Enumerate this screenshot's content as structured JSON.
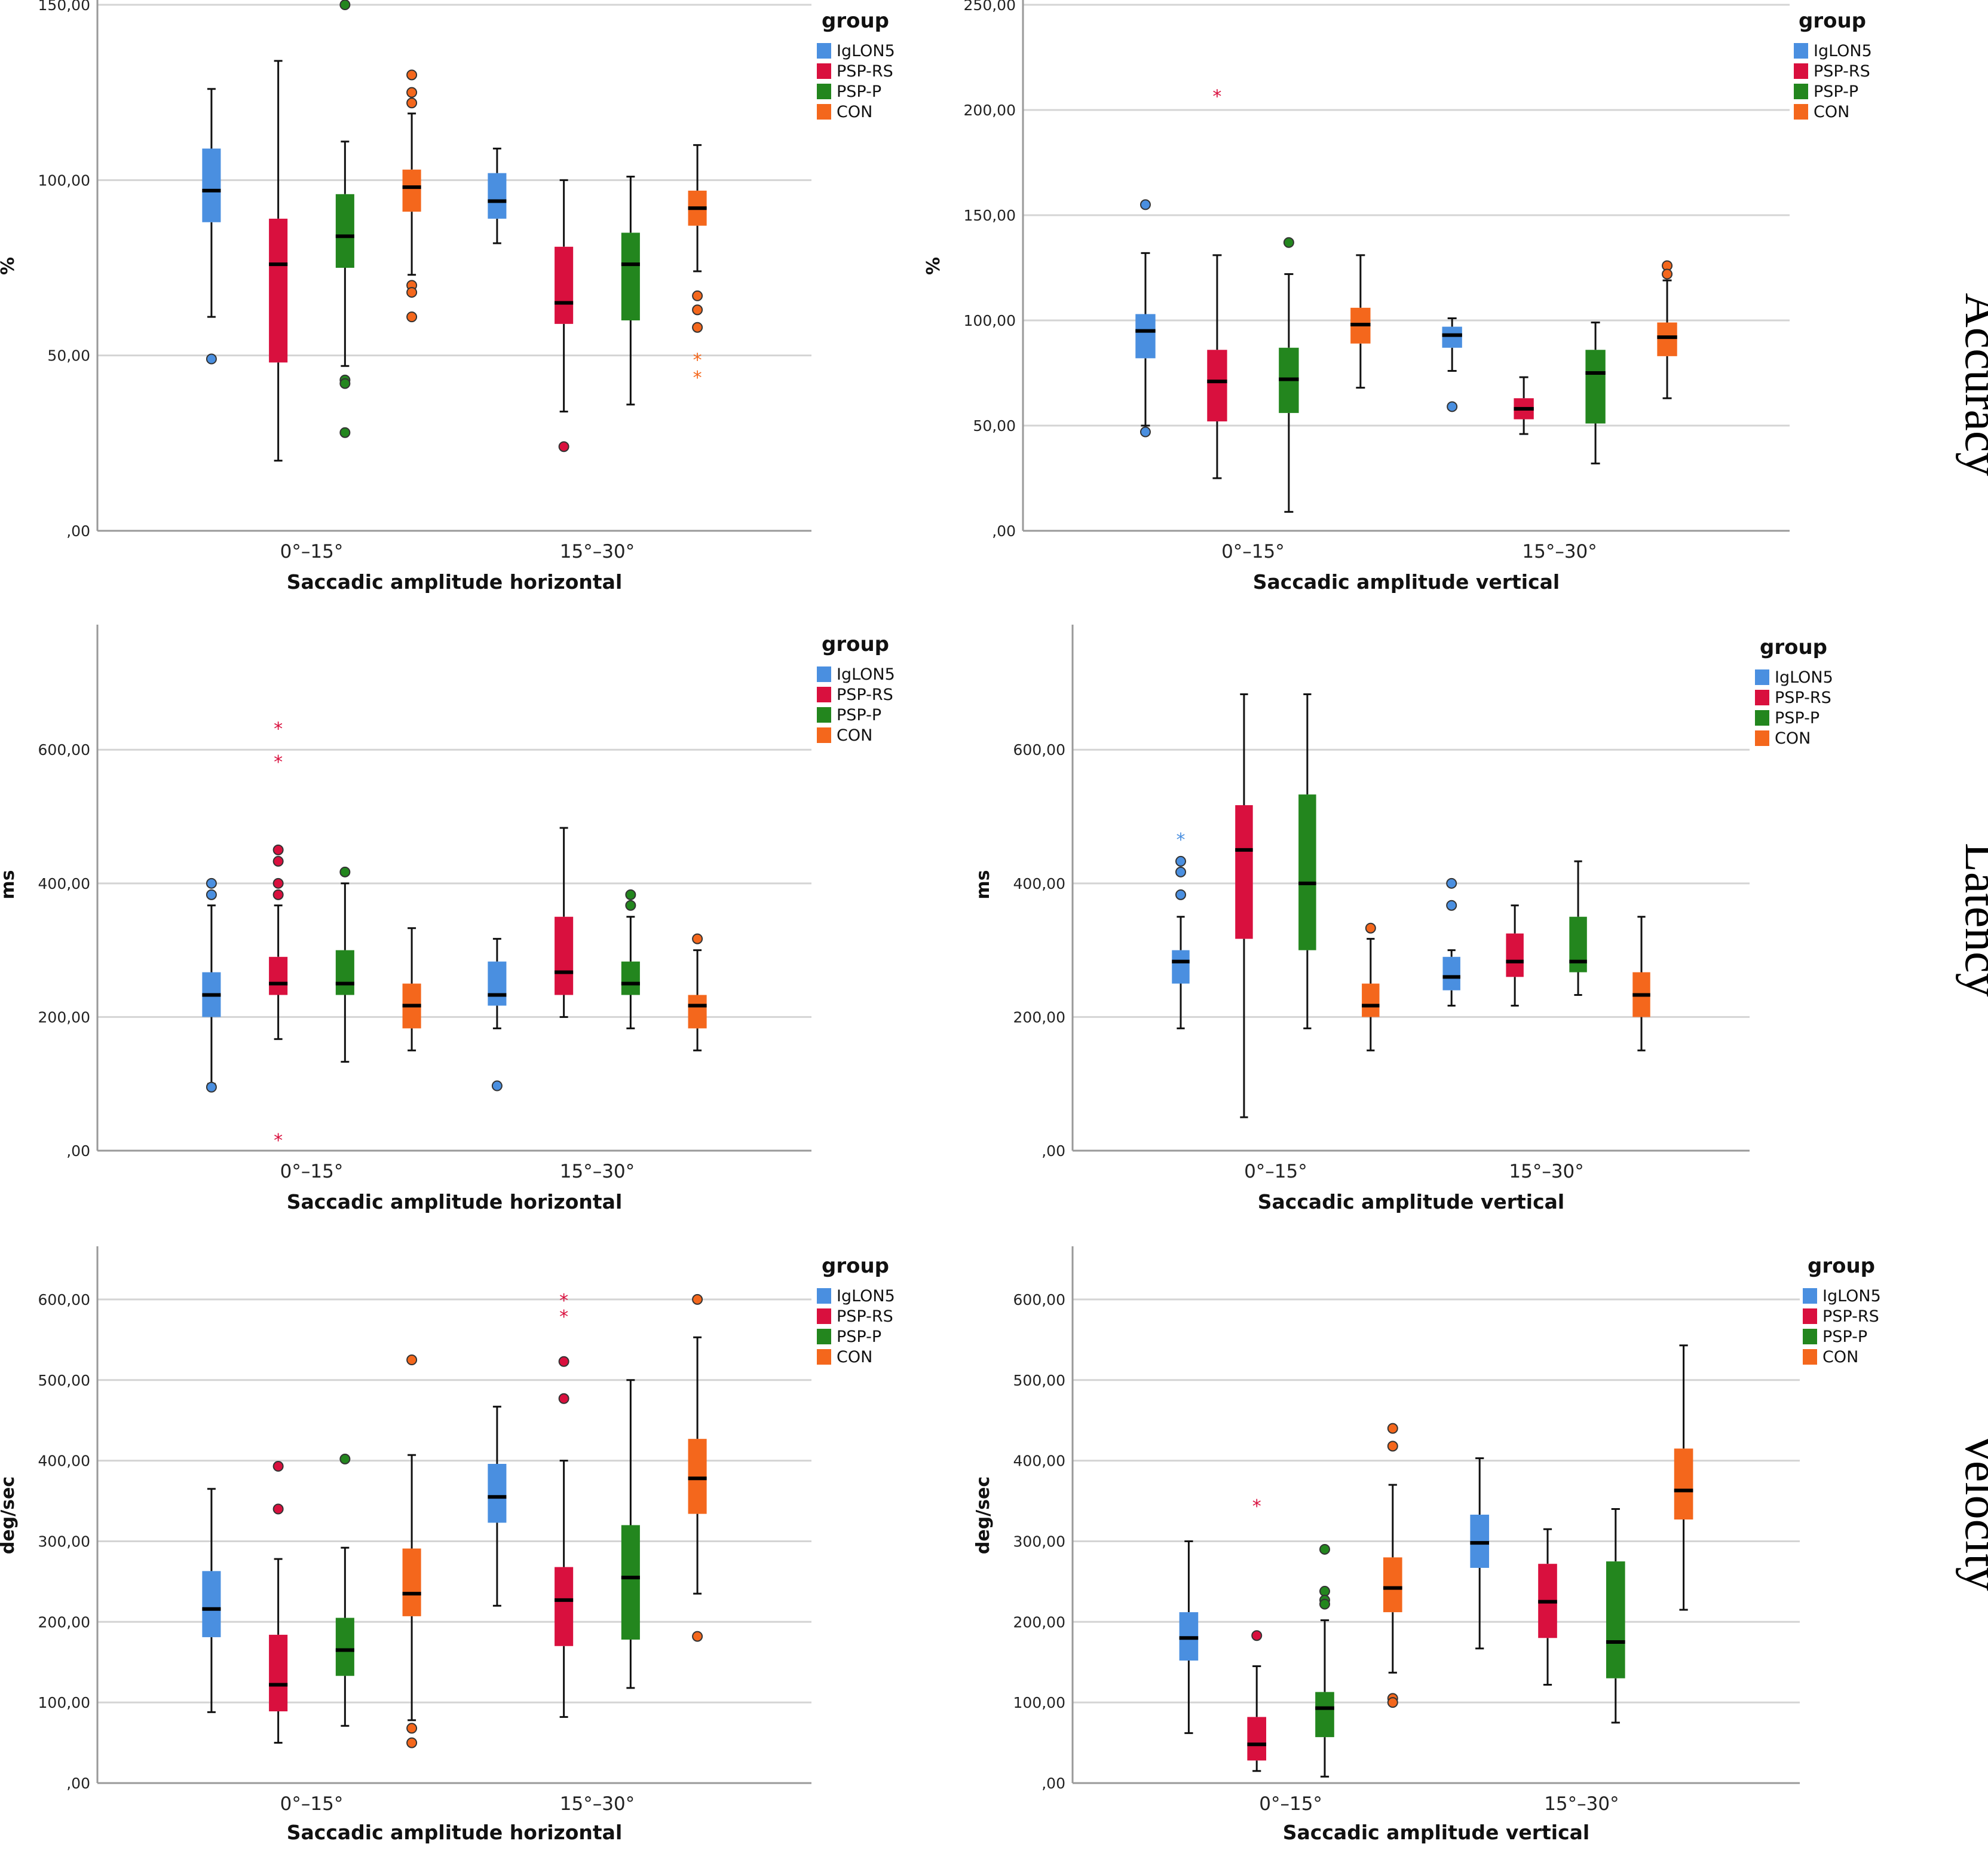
{
  "colors": {
    "IgLON5": "#4a8fe0",
    "PSP-RS": "#d9103e",
    "PSP-P": "#23861e",
    "CON": "#f4671c",
    "grid": "#d4d4d4",
    "axis": "#999999"
  },
  "row_labels": [
    "Accuracy",
    "Latency",
    "Velocity"
  ],
  "chart_data": [
    {
      "type": "box",
      "id": "acc-h",
      "row": 0,
      "col": 0,
      "xlabel": "Saccadic amplitude horizontal",
      "ylabel": "%",
      "ylim": [
        0,
        150
      ],
      "yticks": [
        0,
        50,
        100,
        150
      ],
      "yticklabels": [
        ",00",
        "50,00",
        "100,00",
        "150,00"
      ],
      "legend_title": "group",
      "legend_entries": [
        "IgLON5",
        "PSP-RS",
        "PSP-P",
        "CON"
      ],
      "categories": [
        "0°–15°",
        "15°–30°"
      ],
      "groups": [
        {
          "cat": 0,
          "group": "IgLON5",
          "min": 61,
          "q1": 88,
          "med": 97,
          "q3": 109,
          "max": 126,
          "outliers": [
            49
          ],
          "extremes": []
        },
        {
          "cat": 0,
          "group": "PSP-RS",
          "min": 20,
          "q1": 48,
          "med": 76,
          "q3": 89,
          "max": 134,
          "outliers": [],
          "extremes": []
        },
        {
          "cat": 0,
          "group": "PSP-P",
          "min": 47,
          "q1": 75,
          "med": 84,
          "q3": 96,
          "max": 111,
          "outliers": [
            150,
            43,
            42,
            28
          ],
          "extremes": []
        },
        {
          "cat": 0,
          "group": "CON",
          "min": 73,
          "q1": 91,
          "med": 98,
          "q3": 103,
          "max": 119,
          "outliers": [
            130,
            125,
            122,
            70,
            68,
            61
          ],
          "extremes": []
        },
        {
          "cat": 1,
          "group": "IgLON5",
          "min": 82,
          "q1": 89,
          "med": 94,
          "q3": 102,
          "max": 109,
          "outliers": [],
          "extremes": []
        },
        {
          "cat": 1,
          "group": "PSP-RS",
          "min": 34,
          "q1": 59,
          "med": 65,
          "q3": 81,
          "max": 100,
          "outliers": [
            24
          ],
          "extremes": []
        },
        {
          "cat": 1,
          "group": "PSP-P",
          "min": 36,
          "q1": 60,
          "med": 76,
          "q3": 85,
          "max": 101,
          "outliers": [],
          "extremes": []
        },
        {
          "cat": 1,
          "group": "CON",
          "min": 74,
          "q1": 87,
          "med": 92,
          "q3": 97,
          "max": 110,
          "outliers": [
            67,
            63,
            58
          ],
          "extremes": [
            49,
            44
          ]
        }
      ]
    },
    {
      "type": "box",
      "id": "acc-v",
      "row": 0,
      "col": 1,
      "xlabel": "Saccadic amplitude vertical",
      "ylabel": "%",
      "ylim": [
        0,
        250
      ],
      "yticks": [
        0,
        50,
        100,
        150,
        200,
        250
      ],
      "yticklabels": [
        ",00",
        "50,00",
        "100,00",
        "150,00",
        "200,00",
        "250,00"
      ],
      "legend_title": "group",
      "legend_entries": [
        "IgLON5",
        "PSP-RS",
        "PSP-P",
        "CON"
      ],
      "categories": [
        "0°–15°",
        "15°–30°"
      ],
      "groups": [
        {
          "cat": 0,
          "group": "IgLON5",
          "min": 50,
          "q1": 82,
          "med": 95,
          "q3": 103,
          "max": 132,
          "outliers": [
            155,
            47
          ],
          "extremes": []
        },
        {
          "cat": 0,
          "group": "PSP-RS",
          "min": 25,
          "q1": 52,
          "med": 71,
          "q3": 86,
          "max": 131,
          "outliers": [],
          "extremes": [
            207
          ]
        },
        {
          "cat": 0,
          "group": "PSP-P",
          "min": 9,
          "q1": 56,
          "med": 72,
          "q3": 87,
          "max": 122,
          "outliers": [
            137
          ],
          "extremes": []
        },
        {
          "cat": 0,
          "group": "CON",
          "min": 68,
          "q1": 89,
          "med": 98,
          "q3": 106,
          "max": 131,
          "outliers": [],
          "extremes": []
        },
        {
          "cat": 1,
          "group": "IgLON5",
          "min": 76,
          "q1": 87,
          "med": 93,
          "q3": 97,
          "max": 101,
          "outliers": [
            59
          ],
          "extremes": []
        },
        {
          "cat": 1,
          "group": "PSP-RS",
          "min": 46,
          "q1": 53,
          "med": 58,
          "q3": 63,
          "max": 73,
          "outliers": [],
          "extremes": []
        },
        {
          "cat": 1,
          "group": "PSP-P",
          "min": 32,
          "q1": 51,
          "med": 75,
          "q3": 86,
          "max": 99,
          "outliers": [],
          "extremes": []
        },
        {
          "cat": 1,
          "group": "CON",
          "min": 63,
          "q1": 83,
          "med": 92,
          "q3": 99,
          "max": 119,
          "outliers": [
            126,
            122
          ],
          "extremes": []
        }
      ]
    },
    {
      "type": "box",
      "id": "lat-h",
      "row": 1,
      "col": 0,
      "xlabel": "Saccadic amplitude horizontal",
      "ylabel": "ms",
      "ylim": [
        0,
        780
      ],
      "yticks": [
        0,
        200,
        400,
        600
      ],
      "yticklabels": [
        ",00",
        "200,00",
        "400,00",
        "600,00"
      ],
      "legend_title": "group",
      "legend_entries": [
        "IgLON5",
        "PSP-RS",
        "PSP-P",
        "CON"
      ],
      "categories": [
        "0°–15°",
        "15°–30°"
      ],
      "groups": [
        {
          "cat": 0,
          "group": "IgLON5",
          "min": 100,
          "q1": 200,
          "med": 233,
          "q3": 267,
          "max": 367,
          "outliers": [
            400,
            383,
            95
          ],
          "extremes": []
        },
        {
          "cat": 0,
          "group": "PSP-RS",
          "min": 167,
          "q1": 233,
          "med": 250,
          "q3": 290,
          "max": 367,
          "outliers": [
            450,
            433,
            400,
            383
          ],
          "extremes": [
            633,
            583,
            17
          ]
        },
        {
          "cat": 0,
          "group": "PSP-P",
          "min": 133,
          "q1": 233,
          "med": 250,
          "q3": 300,
          "max": 400,
          "outliers": [
            417
          ],
          "extremes": []
        },
        {
          "cat": 0,
          "group": "CON",
          "min": 150,
          "q1": 183,
          "med": 217,
          "q3": 250,
          "max": 333,
          "outliers": [],
          "extremes": []
        },
        {
          "cat": 1,
          "group": "IgLON5",
          "min": 183,
          "q1": 217,
          "med": 233,
          "q3": 283,
          "max": 317,
          "outliers": [
            97
          ],
          "extremes": []
        },
        {
          "cat": 1,
          "group": "PSP-RS",
          "min": 200,
          "q1": 233,
          "med": 267,
          "q3": 350,
          "max": 483,
          "outliers": [],
          "extremes": []
        },
        {
          "cat": 1,
          "group": "PSP-P",
          "min": 183,
          "q1": 233,
          "med": 250,
          "q3": 283,
          "max": 350,
          "outliers": [
            383,
            367
          ],
          "extremes": []
        },
        {
          "cat": 1,
          "group": "CON",
          "min": 150,
          "q1": 183,
          "med": 217,
          "q3": 233,
          "max": 300,
          "outliers": [
            317
          ],
          "extremes": []
        }
      ]
    },
    {
      "type": "box",
      "id": "lat-v",
      "row": 1,
      "col": 1,
      "xlabel": "Saccadic amplitude vertical",
      "ylabel": "ms",
      "ylim": [
        0,
        780
      ],
      "yticks": [
        0,
        200,
        400,
        600
      ],
      "yticklabels": [
        ",00",
        "200,00",
        "400,00",
        "600,00"
      ],
      "legend_title": "group",
      "legend_entries": [
        "IgLON5",
        "PSP-RS",
        "PSP-P",
        "CON"
      ],
      "categories": [
        "0°–15°",
        "15°–30°"
      ],
      "groups": [
        {
          "cat": 0,
          "group": "IgLON5",
          "min": 183,
          "q1": 250,
          "med": 283,
          "q3": 300,
          "max": 350,
          "outliers": [
            433,
            417,
            383
          ],
          "extremes": [
            467
          ]
        },
        {
          "cat": 0,
          "group": "PSP-RS",
          "min": 50,
          "q1": 317,
          "med": 450,
          "q3": 517,
          "max": 683,
          "outliers": [],
          "extremes": []
        },
        {
          "cat": 0,
          "group": "PSP-P",
          "min": 183,
          "q1": 300,
          "med": 400,
          "q3": 533,
          "max": 683,
          "outliers": [],
          "extremes": []
        },
        {
          "cat": 0,
          "group": "CON",
          "min": 150,
          "q1": 200,
          "med": 217,
          "q3": 250,
          "max": 317,
          "outliers": [
            333
          ],
          "extremes": []
        },
        {
          "cat": 1,
          "group": "IgLON5",
          "min": 217,
          "q1": 240,
          "med": 260,
          "q3": 290,
          "max": 300,
          "outliers": [
            400,
            367
          ],
          "extremes": []
        },
        {
          "cat": 1,
          "group": "PSP-RS",
          "min": 217,
          "q1": 260,
          "med": 283,
          "q3": 325,
          "max": 367,
          "outliers": [],
          "extremes": []
        },
        {
          "cat": 1,
          "group": "PSP-P",
          "min": 233,
          "q1": 267,
          "med": 283,
          "q3": 350,
          "max": 433,
          "outliers": [],
          "extremes": []
        },
        {
          "cat": 1,
          "group": "CON",
          "min": 150,
          "q1": 200,
          "med": 233,
          "q3": 267,
          "max": 350,
          "outliers": [],
          "extremes": []
        }
      ]
    },
    {
      "type": "box",
      "id": "vel-h",
      "row": 2,
      "col": 0,
      "xlabel": "Saccadic amplitude horizontal",
      "ylabel": "deg/sec",
      "ylim": [
        0,
        660
      ],
      "yticks": [
        0,
        100,
        200,
        300,
        400,
        500,
        600
      ],
      "yticklabels": [
        ",00",
        "100,00",
        "200,00",
        "300,00",
        "400,00",
        "500,00",
        "600,00"
      ],
      "legend_title": "group",
      "legend_entries": [
        "IgLON5",
        "PSP-RS",
        "PSP-P",
        "CON"
      ],
      "categories": [
        "0°–15°",
        "15°–30°"
      ],
      "groups": [
        {
          "cat": 0,
          "group": "IgLON5",
          "min": 88,
          "q1": 181,
          "med": 216,
          "q3": 263,
          "max": 365,
          "outliers": [],
          "extremes": []
        },
        {
          "cat": 0,
          "group": "PSP-RS",
          "min": 50,
          "q1": 89,
          "med": 122,
          "q3": 184,
          "max": 278,
          "outliers": [
            393,
            340
          ],
          "extremes": []
        },
        {
          "cat": 0,
          "group": "PSP-P",
          "min": 71,
          "q1": 133,
          "med": 165,
          "q3": 205,
          "max": 292,
          "outliers": [
            402
          ],
          "extremes": []
        },
        {
          "cat": 0,
          "group": "CON",
          "min": 78,
          "q1": 207,
          "med": 235,
          "q3": 291,
          "max": 407,
          "outliers": [
            525,
            68,
            50
          ],
          "extremes": []
        },
        {
          "cat": 1,
          "group": "IgLON5",
          "min": 220,
          "q1": 323,
          "med": 355,
          "q3": 396,
          "max": 467,
          "outliers": [],
          "extremes": []
        },
        {
          "cat": 1,
          "group": "PSP-RS",
          "min": 82,
          "q1": 170,
          "med": 227,
          "q3": 268,
          "max": 400,
          "outliers": [
            523,
            477
          ],
          "extremes": [
            600,
            580
          ]
        },
        {
          "cat": 1,
          "group": "PSP-P",
          "min": 118,
          "q1": 178,
          "med": 255,
          "q3": 320,
          "max": 500,
          "outliers": [],
          "extremes": []
        },
        {
          "cat": 1,
          "group": "CON",
          "min": 235,
          "q1": 334,
          "med": 378,
          "q3": 427,
          "max": 553,
          "outliers": [
            600,
            182
          ],
          "extremes": []
        }
      ]
    },
    {
      "type": "box",
      "id": "vel-v",
      "row": 2,
      "col": 1,
      "xlabel": "Saccadic amplitude vertical",
      "ylabel": "deg/sec",
      "ylim": [
        0,
        660
      ],
      "yticks": [
        0,
        100,
        200,
        300,
        400,
        500,
        600
      ],
      "yticklabels": [
        ",00",
        "100,00",
        "200,00",
        "300,00",
        "400,00",
        "500,00",
        "600,00"
      ],
      "legend_title": "group",
      "legend_entries": [
        "IgLON5",
        "PSP-RS",
        "PSP-P",
        "CON"
      ],
      "categories": [
        "0°–15°",
        "15°–30°"
      ],
      "groups": [
        {
          "cat": 0,
          "group": "IgLON5",
          "min": 62,
          "q1": 152,
          "med": 180,
          "q3": 212,
          "max": 300,
          "outliers": [],
          "extremes": []
        },
        {
          "cat": 0,
          "group": "PSP-RS",
          "min": 15,
          "q1": 28,
          "med": 48,
          "q3": 82,
          "max": 145,
          "outliers": [
            183
          ],
          "extremes": [
            345
          ]
        },
        {
          "cat": 0,
          "group": "PSP-P",
          "min": 8,
          "q1": 57,
          "med": 93,
          "q3": 113,
          "max": 202,
          "outliers": [
            290,
            238,
            227,
            222
          ],
          "extremes": []
        },
        {
          "cat": 0,
          "group": "CON",
          "min": 137,
          "q1": 212,
          "med": 242,
          "q3": 280,
          "max": 370,
          "outliers": [
            440,
            418,
            105,
            100
          ],
          "extremes": []
        },
        {
          "cat": 1,
          "group": "IgLON5",
          "min": 167,
          "q1": 267,
          "med": 298,
          "q3": 333,
          "max": 403,
          "outliers": [],
          "extremes": []
        },
        {
          "cat": 1,
          "group": "PSP-RS",
          "min": 122,
          "q1": 180,
          "med": 225,
          "q3": 272,
          "max": 315,
          "outliers": [],
          "extremes": []
        },
        {
          "cat": 1,
          "group": "PSP-P",
          "min": 75,
          "q1": 130,
          "med": 175,
          "q3": 275,
          "max": 340,
          "outliers": [],
          "extremes": []
        },
        {
          "cat": 1,
          "group": "CON",
          "min": 215,
          "q1": 327,
          "med": 363,
          "q3": 415,
          "max": 543,
          "outliers": [],
          "extremes": []
        }
      ]
    }
  ]
}
